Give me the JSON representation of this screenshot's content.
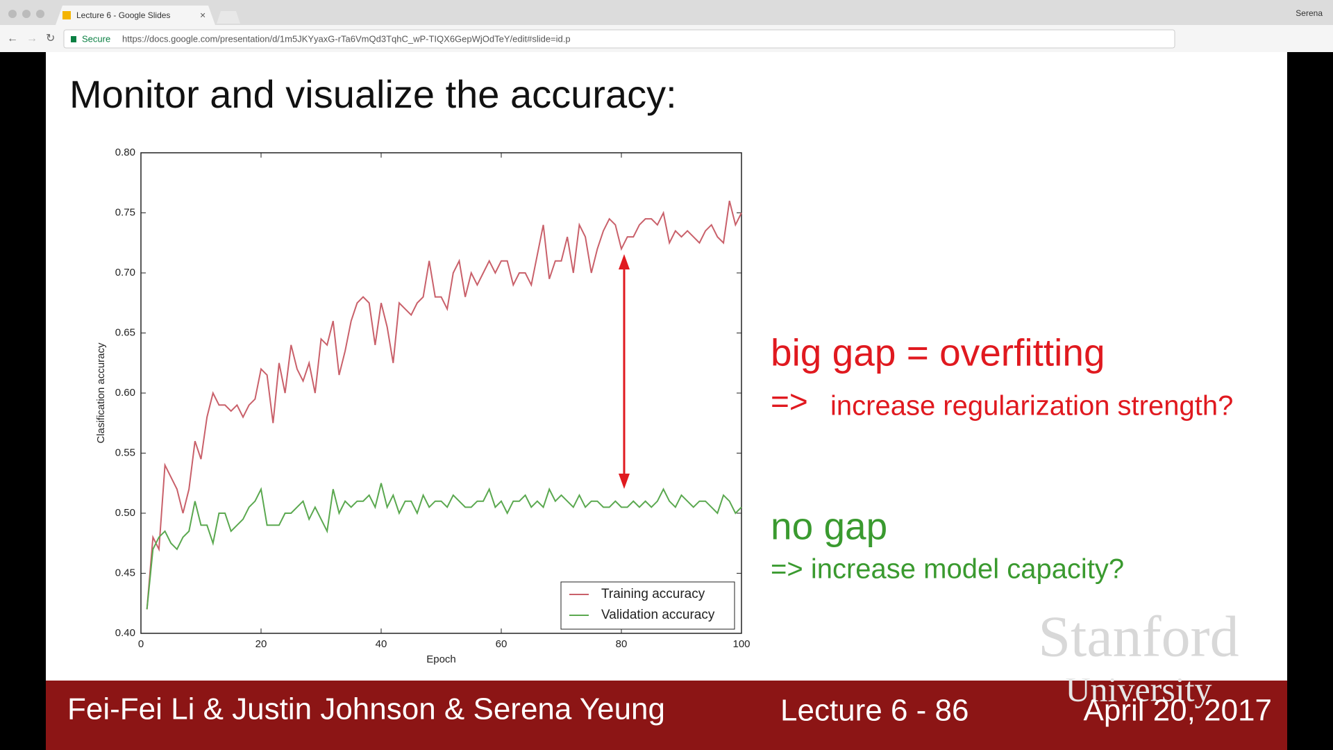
{
  "browser": {
    "tab_title": "Lecture 6 - Google Slides",
    "secure": "Secure",
    "url": "https://docs.google.com/presentation/d/1m5JKYyaxG-rTa6VmQd3TqhC_wP-TIQX6GepWjOdTeY/edit#slide=id.p",
    "user": "Serena"
  },
  "slide": {
    "title": "Monitor and visualize the accuracy:",
    "gap_text": "big gap = overfitting",
    "gap_prefix": "=>",
    "gap_action": "increase regularization strength?",
    "nogap_text": "no gap",
    "nogap_action": "=> increase model capacity?",
    "footer": {
      "authors": "Fei-Fei Li & Justin Johnson & Serena Yeung",
      "lecture": "Lecture 6 - 86",
      "date": "April 20, 2017"
    },
    "watermark": {
      "line1": "Stanford",
      "line2": "University"
    }
  },
  "chart_data": {
    "type": "line",
    "xlabel": "Epoch",
    "ylabel": "Clasification accuracy",
    "x": [
      1,
      2,
      3,
      4,
      5,
      6,
      7,
      8,
      9,
      10,
      11,
      12,
      13,
      14,
      15,
      16,
      17,
      18,
      19,
      20,
      21,
      22,
      23,
      24,
      25,
      26,
      27,
      28,
      29,
      30,
      31,
      32,
      33,
      34,
      35,
      36,
      37,
      38,
      39,
      40,
      41,
      42,
      43,
      44,
      45,
      46,
      47,
      48,
      49,
      50,
      51,
      52,
      53,
      54,
      55,
      56,
      57,
      58,
      59,
      60,
      61,
      62,
      63,
      64,
      65,
      66,
      67,
      68,
      69,
      70,
      71,
      72,
      73,
      74,
      75,
      76,
      77,
      78,
      79,
      80,
      81,
      82,
      83,
      84,
      85,
      86,
      87,
      88,
      89,
      90,
      91,
      92,
      93,
      94,
      95,
      96,
      97,
      98,
      99,
      100
    ],
    "series": [
      {
        "name": "Training accuracy",
        "color": "#c9606a",
        "values": [
          0.42,
          0.48,
          0.47,
          0.54,
          0.53,
          0.52,
          0.5,
          0.52,
          0.56,
          0.545,
          0.58,
          0.6,
          0.59,
          0.59,
          0.585,
          0.59,
          0.58,
          0.59,
          0.595,
          0.62,
          0.615,
          0.575,
          0.625,
          0.6,
          0.64,
          0.62,
          0.61,
          0.625,
          0.6,
          0.645,
          0.64,
          0.66,
          0.615,
          0.635,
          0.66,
          0.675,
          0.68,
          0.675,
          0.64,
          0.675,
          0.655,
          0.625,
          0.675,
          0.67,
          0.665,
          0.675,
          0.68,
          0.71,
          0.68,
          0.68,
          0.67,
          0.7,
          0.71,
          0.68,
          0.7,
          0.69,
          0.7,
          0.71,
          0.7,
          0.71,
          0.71,
          0.69,
          0.7,
          0.7,
          0.69,
          0.715,
          0.74,
          0.695,
          0.71,
          0.71,
          0.73,
          0.7,
          0.74,
          0.73,
          0.7,
          0.72,
          0.735,
          0.745,
          0.74,
          0.72,
          0.73,
          0.73,
          0.74,
          0.745,
          0.745,
          0.74,
          0.75,
          0.725,
          0.735,
          0.73,
          0.735,
          0.73,
          0.725,
          0.735,
          0.74,
          0.73,
          0.725,
          0.76,
          0.74,
          0.75
        ]
      },
      {
        "name": "Validation accuracy",
        "color": "#5aa84f",
        "values": [
          0.42,
          0.47,
          0.48,
          0.485,
          0.475,
          0.47,
          0.48,
          0.485,
          0.51,
          0.49,
          0.49,
          0.475,
          0.5,
          0.5,
          0.485,
          0.49,
          0.495,
          0.505,
          0.51,
          0.52,
          0.49,
          0.49,
          0.49,
          0.5,
          0.5,
          0.505,
          0.51,
          0.495,
          0.505,
          0.495,
          0.485,
          0.52,
          0.5,
          0.51,
          0.505,
          0.51,
          0.51,
          0.515,
          0.505,
          0.525,
          0.505,
          0.515,
          0.5,
          0.51,
          0.51,
          0.5,
          0.515,
          0.505,
          0.51,
          0.51,
          0.505,
          0.515,
          0.51,
          0.505,
          0.505,
          0.51,
          0.51,
          0.52,
          0.505,
          0.51,
          0.5,
          0.51,
          0.51,
          0.515,
          0.505,
          0.51,
          0.505,
          0.52,
          0.51,
          0.515,
          0.51,
          0.505,
          0.515,
          0.505,
          0.51,
          0.51,
          0.505,
          0.505,
          0.51,
          0.505,
          0.505,
          0.51,
          0.505,
          0.51,
          0.505,
          0.51,
          0.52,
          0.51,
          0.505,
          0.515,
          0.51,
          0.505,
          0.51,
          0.51,
          0.505,
          0.5,
          0.515,
          0.51,
          0.5,
          0.505
        ]
      }
    ],
    "xlim": [
      0,
      100
    ],
    "xticks": [
      0,
      20,
      40,
      60,
      80,
      100
    ],
    "ylim": [
      0.4,
      0.8
    ],
    "yticks": [
      {
        "value": 0.4,
        "label": "0.40"
      },
      0.45,
      {
        "value": 0.5,
        "label": "0.50"
      },
      0.55,
      {
        "value": 0.6,
        "label": "0.60"
      },
      0.65,
      {
        "value": 0.7,
        "label": "0.70"
      },
      0.75,
      {
        "value": 0.8,
        "label": "0.80"
      }
    ],
    "grid": false,
    "legend": "lower right"
  }
}
